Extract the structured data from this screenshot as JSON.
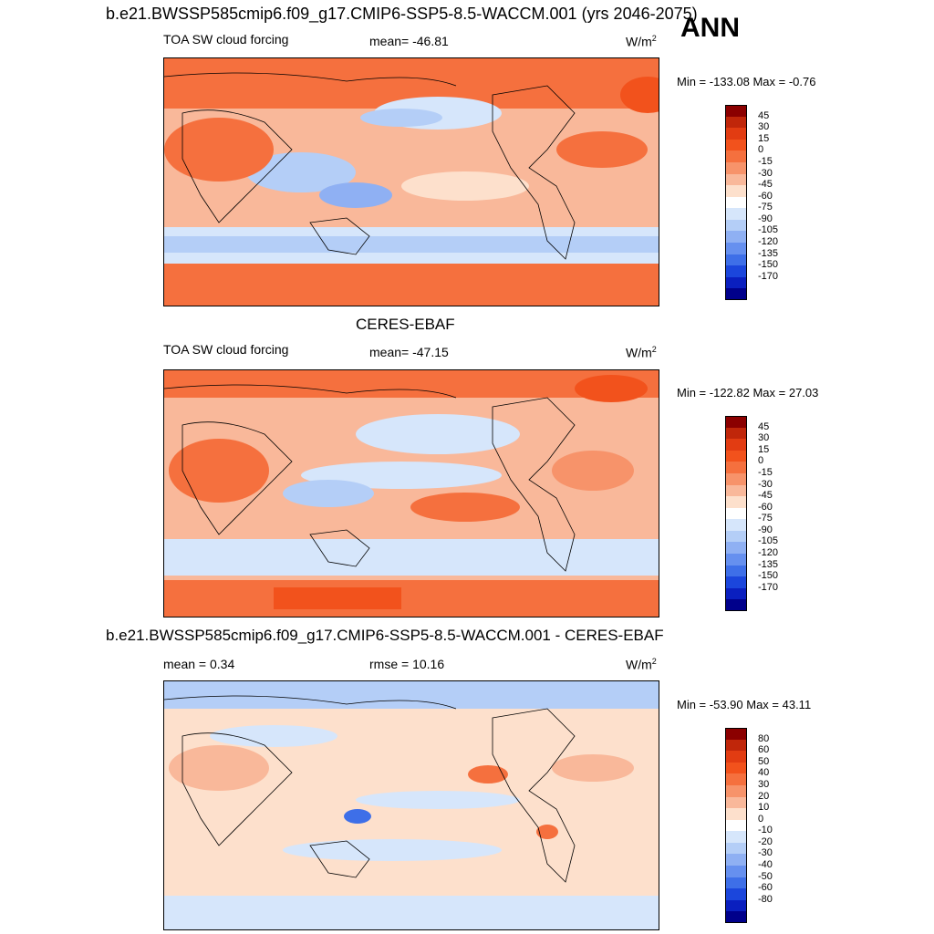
{
  "header": {
    "title": "b.e21.BWSSP585cmip6.f09_g17.CMIP6-SSP5-8.5-WACCM.001 (yrs 2046-2075)",
    "season": "ANN"
  },
  "panel1": {
    "variable": "TOA SW cloud forcing",
    "mean": "mean= -46.81",
    "units": "W/m",
    "units_sup": "2",
    "minmax": "Min = -133.08 Max =  -0.76"
  },
  "panel2": {
    "title": "CERES-EBAF",
    "variable": "TOA SW cloud forcing",
    "mean": "mean= -47.15",
    "units": "W/m",
    "units_sup": "2",
    "minmax": "Min = -122.82 Max =  27.03"
  },
  "panel3": {
    "title": "b.e21.BWSSP585cmip6.f09_g17.CMIP6-SSP5-8.5-WACCM.001 - CERES-EBAF",
    "mean": "mean =   0.34",
    "rmse": "rmse =  10.16",
    "units": "W/m",
    "units_sup": "2",
    "minmax": "Min = -53.90 Max =  43.11"
  },
  "colorbar_abs": {
    "labels": [
      "45",
      "30",
      "15",
      "0",
      "-15",
      "-30",
      "-45",
      "-60",
      "-75",
      "-90",
      "-105",
      "-120",
      "-135",
      "-150",
      "-170"
    ],
    "colors": [
      "#8b0000",
      "#c0260a",
      "#e23c12",
      "#f2521c",
      "#f5703e",
      "#f7936a",
      "#f9b89a",
      "#fde0cc",
      "#ffffff",
      "#d6e6fb",
      "#b4cef7",
      "#8fb0f3",
      "#6690ef",
      "#3e6fe8",
      "#1b46dc",
      "#0a1fbf",
      "#00008b"
    ]
  },
  "colorbar_diff": {
    "labels": [
      "80",
      "60",
      "50",
      "40",
      "30",
      "20",
      "10",
      "0",
      "-10",
      "-20",
      "-30",
      "-40",
      "-50",
      "-60",
      "-80"
    ],
    "colors": [
      "#8b0000",
      "#c0260a",
      "#e23c12",
      "#f2521c",
      "#f5703e",
      "#f7936a",
      "#f9b89a",
      "#fde0cc",
      "#ffffff",
      "#d6e6fb",
      "#b4cef7",
      "#8fb0f3",
      "#6690ef",
      "#3e6fe8",
      "#1b46dc",
      "#0a1fbf",
      "#00008b"
    ]
  }
}
